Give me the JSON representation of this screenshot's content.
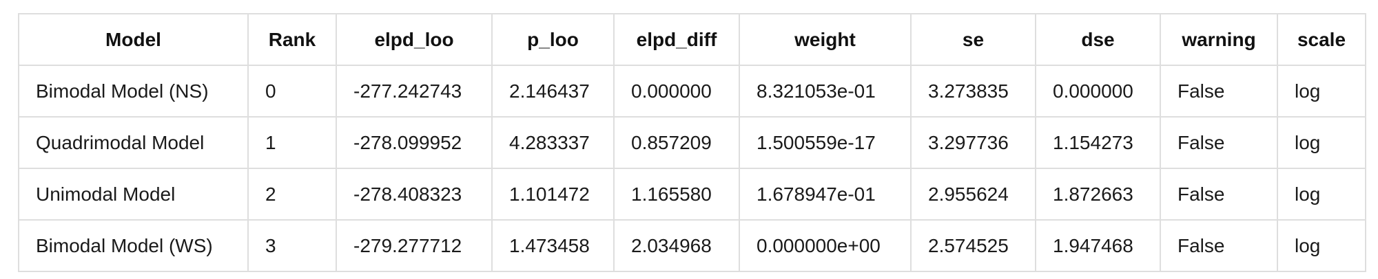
{
  "table": {
    "columns": [
      "Model",
      "Rank",
      "elpd_loo",
      "p_loo",
      "elpd_diff",
      "weight",
      "se",
      "dse",
      "warning",
      "scale"
    ],
    "rows": [
      [
        "Bimodal Model (NS)",
        "0",
        "-277.242743",
        "2.146437",
        "0.000000",
        "8.321053e-01",
        "3.273835",
        "0.000000",
        "False",
        "log"
      ],
      [
        "Quadrimodal Model",
        "1",
        "-278.099952",
        "4.283337",
        "0.857209",
        "1.500559e-17",
        "3.297736",
        "1.154273",
        "False",
        "log"
      ],
      [
        "Unimodal Model",
        "2",
        "-278.408323",
        "1.101472",
        "1.165580",
        "1.678947e-01",
        "2.955624",
        "1.872663",
        "False",
        "log"
      ],
      [
        "Bimodal Model (WS)",
        "3",
        "-279.277712",
        "1.473458",
        "2.034968",
        "0.000000e+00",
        "2.574525",
        "1.947468",
        "False",
        "log"
      ]
    ]
  }
}
